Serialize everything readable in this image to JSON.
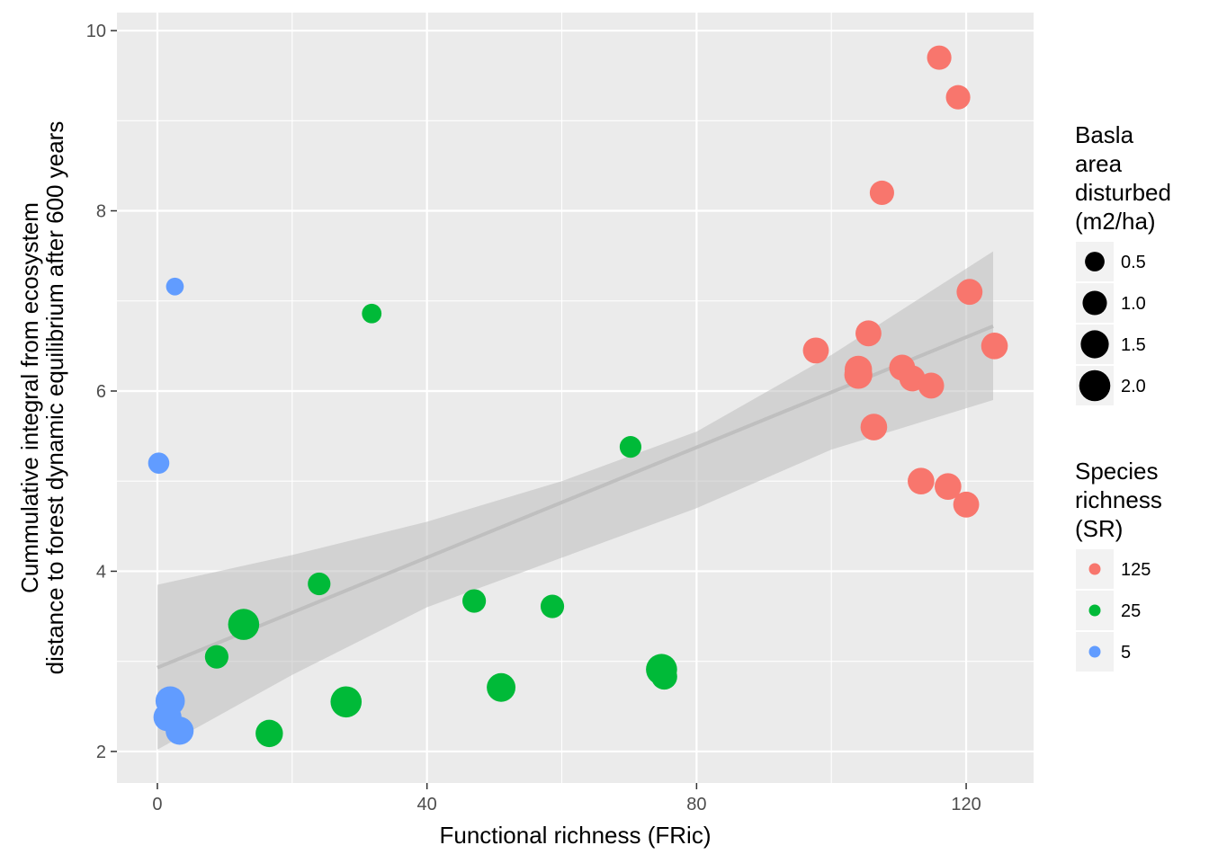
{
  "chart_data": {
    "type": "scatter",
    "title": "",
    "xlabel": "Functional richness (FRic)",
    "ylabel": [
      "Cummulative integral from ecosystem",
      "distance to forest dynamic equilibrium after 600 years"
    ],
    "xlim": [
      -6,
      130
    ],
    "ylim": [
      1.65,
      10.2
    ],
    "x_ticks": [
      0,
      40,
      80,
      120
    ],
    "y_ticks": [
      2,
      4,
      6,
      8,
      10
    ],
    "grid": true,
    "background_color": "#ebebeb",
    "legend_position": "right",
    "size_legend": {
      "title": [
        "Basla",
        "area",
        "disturbed",
        "(m2/ha)"
      ],
      "entries": [
        {
          "label": "0.5",
          "value": 0.5
        },
        {
          "label": "1.0",
          "value": 1.0
        },
        {
          "label": "1.5",
          "value": 1.5
        },
        {
          "label": "2.0",
          "value": 2.0
        }
      ]
    },
    "color_legend": {
      "title": [
        "Species",
        "richness",
        "(SR)"
      ],
      "entries": [
        {
          "label": "125",
          "color": "#f8766d"
        },
        {
          "label": "25",
          "color": "#00ba38"
        },
        {
          "label": "5",
          "color": "#619cff"
        }
      ]
    },
    "trend": {
      "x": [
        0,
        124
      ],
      "y": [
        2.93,
        6.72
      ],
      "ci_upper": [
        [
          0,
          3.85
        ],
        [
          20,
          4.18
        ],
        [
          40,
          4.55
        ],
        [
          60,
          5.0
        ],
        [
          80,
          5.55
        ],
        [
          100,
          6.4
        ],
        [
          124,
          7.55
        ]
      ],
      "ci_lower": [
        [
          0,
          2.02
        ],
        [
          20,
          2.85
        ],
        [
          40,
          3.6
        ],
        [
          60,
          4.15
        ],
        [
          80,
          4.7
        ],
        [
          100,
          5.35
        ],
        [
          124,
          5.9
        ]
      ],
      "line_color": "#bfbfbf",
      "band_color": "#bdbdbd"
    },
    "series": [
      {
        "name": "125",
        "color": "#f8766d",
        "points": [
          {
            "x": 116.0,
            "y": 9.7,
            "size": 1.0
          },
          {
            "x": 118.8,
            "y": 9.26,
            "size": 1.0
          },
          {
            "x": 107.5,
            "y": 8.2,
            "size": 1.0
          },
          {
            "x": 120.5,
            "y": 7.1,
            "size": 1.2
          },
          {
            "x": 97.7,
            "y": 6.45,
            "size": 1.2
          },
          {
            "x": 105.5,
            "y": 6.64,
            "size": 1.2
          },
          {
            "x": 124.2,
            "y": 6.5,
            "size": 1.3
          },
          {
            "x": 110.5,
            "y": 6.26,
            "size": 1.2
          },
          {
            "x": 104.0,
            "y": 6.24,
            "size": 1.4
          },
          {
            "x": 104.0,
            "y": 6.18,
            "size": 1.5
          },
          {
            "x": 112.0,
            "y": 6.14,
            "size": 1.2
          },
          {
            "x": 114.8,
            "y": 6.06,
            "size": 1.2
          },
          {
            "x": 106.3,
            "y": 5.6,
            "size": 1.3
          },
          {
            "x": 113.3,
            "y": 5.0,
            "size": 1.3
          },
          {
            "x": 117.3,
            "y": 4.94,
            "size": 1.3
          },
          {
            "x": 120.0,
            "y": 4.74,
            "size": 1.2
          }
        ]
      },
      {
        "name": "25",
        "color": "#00ba38",
        "points": [
          {
            "x": 31.8,
            "y": 6.86,
            "size": 0.5
          },
          {
            "x": 70.2,
            "y": 5.38,
            "size": 0.7
          },
          {
            "x": 24.0,
            "y": 3.86,
            "size": 0.8
          },
          {
            "x": 47.0,
            "y": 3.67,
            "size": 0.9
          },
          {
            "x": 58.6,
            "y": 3.61,
            "size": 0.9
          },
          {
            "x": 12.8,
            "y": 3.41,
            "size": 2.0
          },
          {
            "x": 8.8,
            "y": 3.05,
            "size": 0.9
          },
          {
            "x": 75.2,
            "y": 2.83,
            "size": 1.2
          },
          {
            "x": 74.8,
            "y": 2.91,
            "size": 2.0
          },
          {
            "x": 51.0,
            "y": 2.71,
            "size": 1.6
          },
          {
            "x": 28.0,
            "y": 2.55,
            "size": 2.0
          },
          {
            "x": 16.6,
            "y": 2.2,
            "size": 1.4
          }
        ]
      },
      {
        "name": "5",
        "color": "#619cff",
        "points": [
          {
            "x": 2.6,
            "y": 7.16,
            "size": 0.35
          },
          {
            "x": 0.2,
            "y": 5.2,
            "size": 0.65
          },
          {
            "x": 1.9,
            "y": 2.56,
            "size": 1.7
          },
          {
            "x": 1.5,
            "y": 2.38,
            "size": 1.5
          },
          {
            "x": 3.3,
            "y": 2.23,
            "size": 1.5
          }
        ]
      }
    ]
  }
}
